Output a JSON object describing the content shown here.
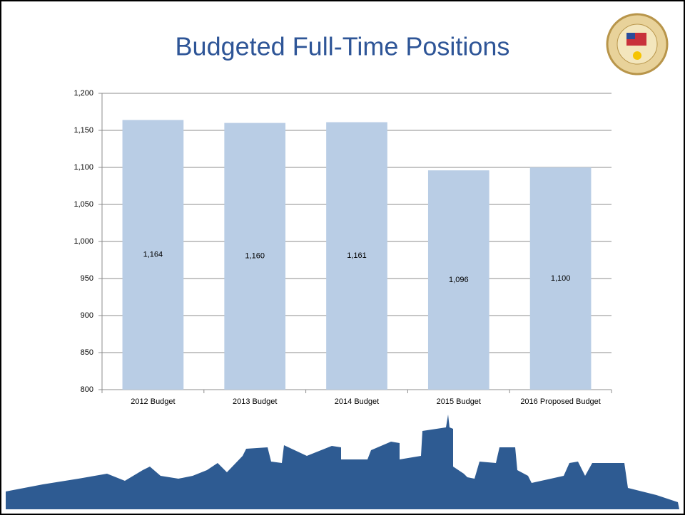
{
  "chart_data": {
    "type": "bar",
    "title": "Budgeted Full-Time Positions",
    "categories": [
      "2012 Budget",
      "2013 Budget",
      "2014 Budget",
      "2015 Budget",
      "2016 Proposed Budget"
    ],
    "values": [
      1164,
      1160,
      1161,
      1096,
      1100
    ],
    "value_labels": [
      "1,164",
      "1,160",
      "1,161",
      "1,096",
      "1,100"
    ],
    "color": "#b9cde5",
    "ylim": [
      800,
      1200
    ],
    "yticks": [
      800,
      850,
      900,
      950,
      {
        "value": 1000,
        "label": "1,000"
      },
      {
        "value": 1050,
        "label": "1,050"
      },
      {
        "value": 1100,
        "label": "1,100"
      },
      {
        "value": 1150,
        "label": "1,150"
      },
      {
        "value": 1200,
        "label": "1,200"
      }
    ],
    "grid": true
  }
}
